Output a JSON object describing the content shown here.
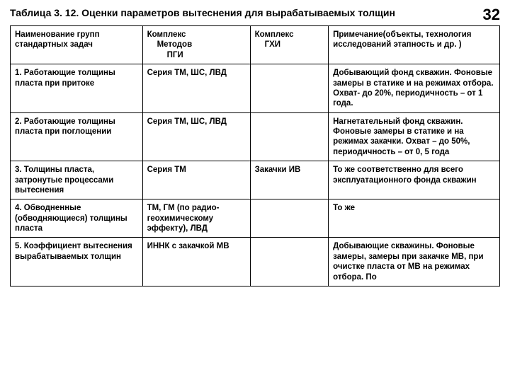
{
  "page_number": "32",
  "title": "Таблица 3. 12. Оценки параметров вытеснения для вырабатываемых толщин",
  "columns": {
    "c1": "Наименование групп стандартных задач",
    "c2_l1": "Комплекс",
    "c2_l2": "Методов",
    "c2_l3": "ПГИ",
    "c3_l1": "Комплекс",
    "c3_l2": "ГХИ",
    "c4": "Примечание(объекты, технология исследований этапность и др. )"
  },
  "rows": [
    {
      "c1": "1. Работающие толщины пласта при притоке",
      "c2": "Серия ТМ, ШС, ЛВД",
      "c3": "",
      "c4": "Добывающий фонд скважин. Фоновые замеры в статике и на режимах отбора. Охват- до 20%, периодичность – от 1 года."
    },
    {
      "c1": "2. Работающие толщины пласта при поглощении",
      "c2": "Серия ТМ, ШС, ЛВД",
      "c3": "",
      "c4": "Нагнетательный фонд скважин. Фоновые замеры в статике и на режимах закачки. Охват – до 50%, периодичность – от 0, 5 года"
    },
    {
      "c1": "3. Толщины пласта, затронутые процессами вытеснения",
      "c2": "Серия ТМ",
      "c3": "Закачки ИВ",
      "c4": "То же соответственно для всего эксплуатационного фонда скважин"
    },
    {
      "c1": "4. Обводненные (обводняющиеся) толщины пласта",
      "c2": "ТМ, ГМ (по радио- геохимическому эффекту), ЛВД",
      "c3": "",
      "c4": "То же"
    },
    {
      "c1": "5. Коэффициент вытеснения вырабатываемых толщин",
      "c2": "ИННК с закачкой МВ",
      "c3": "",
      "c4": "Добывающие скважины. Фоновые замеры, замеры при закачке МВ, при очистке пласта от МВ на режимах отбора. По"
    }
  ]
}
